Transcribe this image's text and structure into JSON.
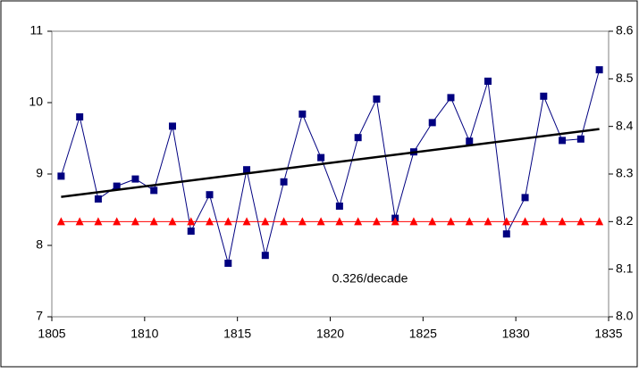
{
  "chart_data": {
    "type": "line",
    "annotation": "0.326/decade",
    "xlim": [
      1805,
      1835
    ],
    "xticks": [
      1805,
      1810,
      1815,
      1820,
      1825,
      1830,
      1835
    ],
    "ylim": [
      7,
      11
    ],
    "yticks": [
      7,
      8,
      9,
      10,
      11
    ],
    "y2lim": [
      8.0,
      8.6
    ],
    "y2ticks": [
      {
        "value": 8,
        "label": "8.0"
      },
      8.1,
      8.2,
      8.3,
      8.4,
      8.5,
      8.6
    ],
    "series": [
      {
        "color": "#000080",
        "marker": "square",
        "x": [
          1805.5,
          1806.5,
          1807.5,
          1808.5,
          1809.5,
          1810.5,
          1811.5,
          1812.5,
          1813.5,
          1814.5,
          1815.5,
          1816.5,
          1817.5,
          1818.5,
          1819.5,
          1820.5,
          1821.5,
          1822.5,
          1823.5,
          1824.5,
          1825.5,
          1826.5,
          1827.5,
          1828.5,
          1829.5,
          1830.5,
          1831.5,
          1832.5,
          1833.5,
          1834.5
        ],
        "values": [
          8.97,
          9.8,
          8.65,
          8.83,
          8.93,
          8.77,
          9.67,
          8.2,
          8.71,
          7.75,
          9.06,
          7.86,
          8.89,
          9.84,
          9.23,
          8.55,
          9.51,
          10.05,
          8.38,
          9.31,
          9.72,
          10.07,
          9.46,
          10.3,
          8.16,
          8.67,
          10.09,
          9.47,
          9.49,
          10.46
        ]
      },
      {
        "color": "#ff0000",
        "marker": "triangle",
        "axis": "y2",
        "x": [
          1805.5,
          1806.5,
          1807.5,
          1808.5,
          1809.5,
          1810.5,
          1811.5,
          1812.5,
          1813.5,
          1814.5,
          1815.5,
          1816.5,
          1817.5,
          1818.5,
          1819.5,
          1820.5,
          1821.5,
          1822.5,
          1823.5,
          1824.5,
          1825.5,
          1826.5,
          1827.5,
          1828.5,
          1829.5,
          1830.5,
          1831.5,
          1832.5,
          1833.5,
          1834.5
        ],
        "values": [
          8.2,
          8.2,
          8.2,
          8.2,
          8.2,
          8.2,
          8.2,
          8.2,
          8.2,
          8.2,
          8.2,
          8.2,
          8.2,
          8.2,
          8.2,
          8.2,
          8.2,
          8.2,
          8.2,
          8.2,
          8.2,
          8.2,
          8.2,
          8.2,
          8.2,
          8.2,
          8.2,
          8.2,
          8.2,
          8.2
        ]
      },
      {
        "color": "#000000",
        "marker": "none",
        "x": [
          1805.5,
          1834.5
        ],
        "values": [
          8.68,
          9.63
        ]
      }
    ]
  }
}
